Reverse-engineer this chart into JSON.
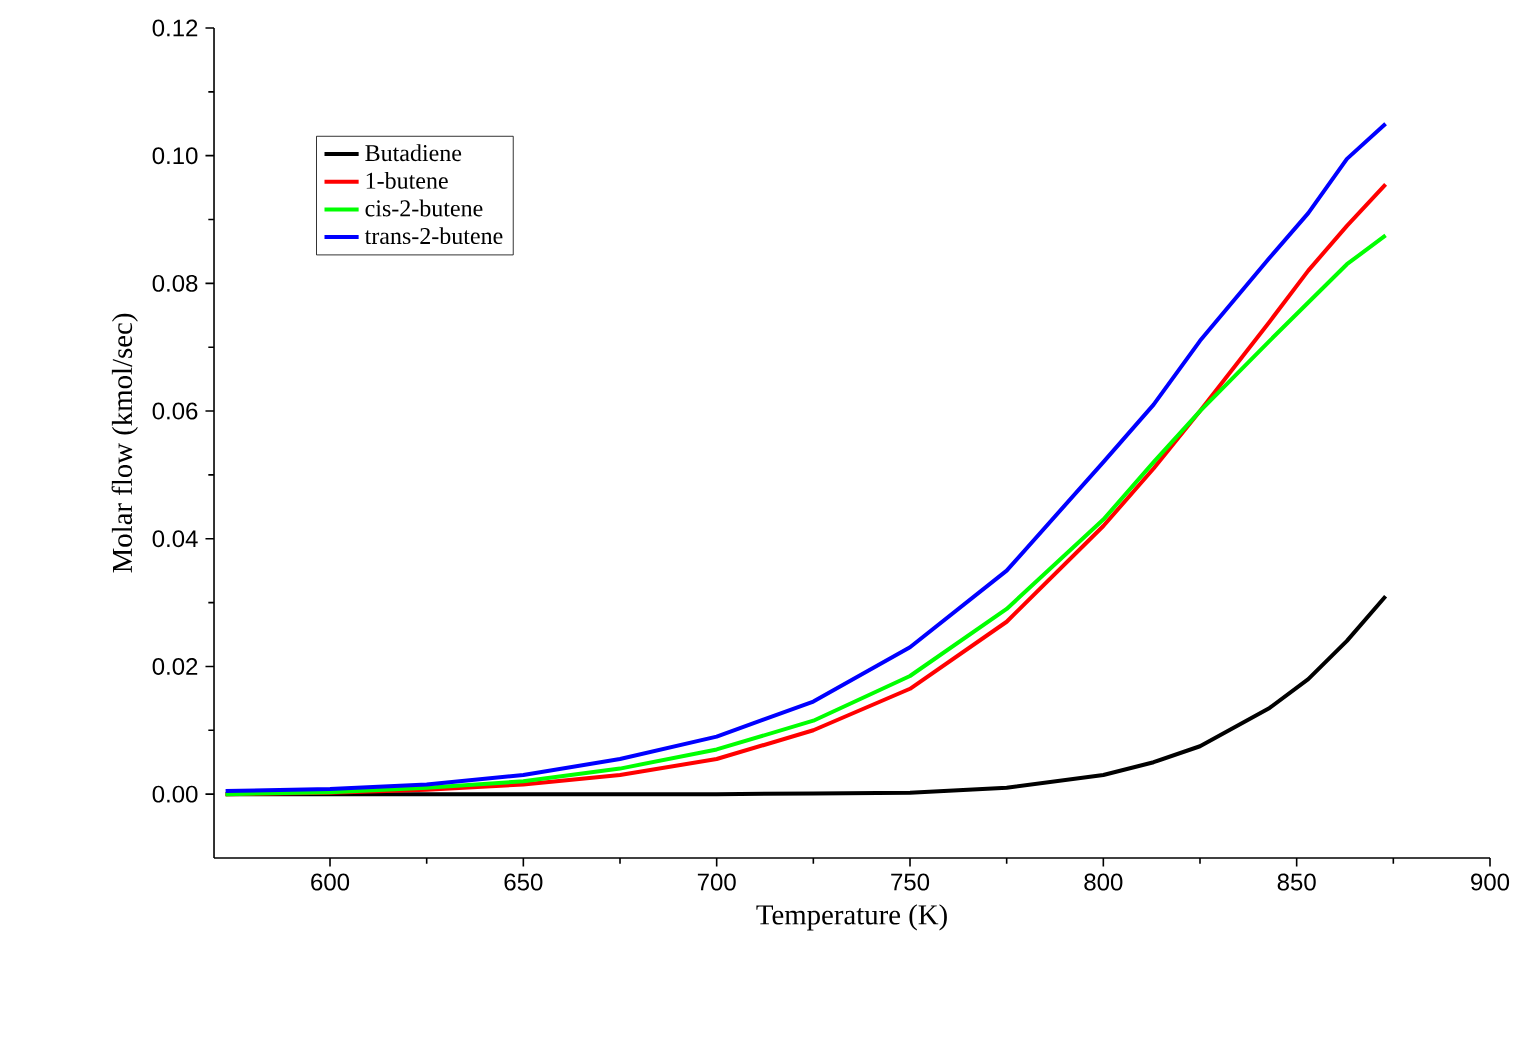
{
  "chart_data": {
    "type": "line",
    "xlabel": "Temperature (K)",
    "ylabel": "Molar flow (kmol/sec)",
    "x": [
      573,
      600,
      625,
      650,
      675,
      700,
      725,
      750,
      775,
      800,
      813,
      825,
      843,
      853,
      863,
      873
    ],
    "series": [
      {
        "name": "Butadiene",
        "color": "#000000",
        "values": [
          0,
          0,
          0,
          0,
          0,
          0,
          0.0001,
          0.0002,
          0.001,
          0.003,
          0.005,
          0.0075,
          0.0135,
          0.018,
          0.024,
          0.031
        ]
      },
      {
        "name": "1-butene",
        "color": "#ff0000",
        "values": [
          0,
          0.0002,
          0.0007,
          0.0015,
          0.003,
          0.0055,
          0.01,
          0.0165,
          0.027,
          0.042,
          0.051,
          0.06,
          0.074,
          0.082,
          0.089,
          0.0955
        ]
      },
      {
        "name": "cis-2-butene",
        "color": "#00ff00",
        "values": [
          0,
          0.0003,
          0.001,
          0.002,
          0.004,
          0.007,
          0.0115,
          0.0185,
          0.029,
          0.043,
          0.052,
          0.06,
          0.071,
          0.077,
          0.083,
          0.0875
        ]
      },
      {
        "name": "trans-2-butene",
        "color": "#0000ff",
        "values": [
          0.0005,
          0.0008,
          0.0015,
          0.003,
          0.0055,
          0.009,
          0.0145,
          0.023,
          0.035,
          0.052,
          0.061,
          0.071,
          0.084,
          0.091,
          0.0995,
          0.105
        ]
      }
    ],
    "xlim": [
      570,
      900
    ],
    "xticks": [
      600,
      650,
      700,
      750,
      800,
      850,
      900
    ],
    "ylim": [
      -0.01,
      0.12
    ],
    "yticks": [
      {
        "value": 0,
        "label": "0.00"
      },
      {
        "value": 0.02,
        "label": "0.02"
      },
      {
        "value": 0.04,
        "label": "0.04"
      },
      {
        "value": 0.06,
        "label": "0.06"
      },
      {
        "value": 0.08,
        "label": "0.08"
      },
      {
        "value": 0.1,
        "label": "0.10"
      },
      {
        "value": 0.12,
        "label": "0.12"
      }
    ],
    "grid": false,
    "legend": "top left",
    "marker": "none",
    "line_style": "solid"
  }
}
